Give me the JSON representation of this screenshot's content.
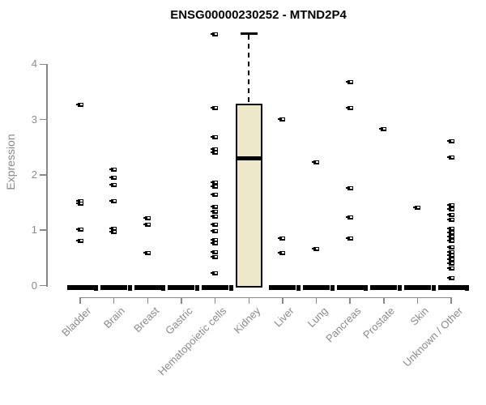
{
  "title": "ENSG00000230252 - MTND2P4",
  "chart_data": {
    "type": "boxplot",
    "title": "ENSG00000230252 - MTND2P4",
    "xlabel": "",
    "ylabel": "Expression",
    "ylim": [
      0,
      4.7
    ],
    "yticks": [
      0,
      1,
      2,
      3,
      4
    ],
    "grid": false,
    "legend": false,
    "categories": [
      "Bladder",
      "Brain",
      "Breast",
      "Gastric",
      "Hematopoietic cells",
      "Kidney",
      "Liver",
      "Lung",
      "Pancreas",
      "Prostate",
      "Skin",
      "Unknown / Other"
    ],
    "series": [
      {
        "name": "Bladder",
        "box": {
          "q1": 0,
          "median": 0,
          "q3": 0,
          "whisker_low": 0,
          "whisker_high": 0
        },
        "points": [
          3.27,
          1.53,
          1.48,
          1.01,
          0.81
        ],
        "zero_point": true
      },
      {
        "name": "Brain",
        "box": {
          "q1": 0,
          "median": 0,
          "q3": 0,
          "whisker_low": 0,
          "whisker_high": 0
        },
        "points": [
          2.1,
          1.95,
          1.81,
          1.53,
          1.03,
          0.97
        ],
        "zero_point": true
      },
      {
        "name": "Breast",
        "box": {
          "q1": 0,
          "median": 0,
          "q3": 0,
          "whisker_low": 0,
          "whisker_high": 0
        },
        "points": [
          1.22,
          1.1,
          0.59
        ],
        "zero_point": true
      },
      {
        "name": "Gastric",
        "box": {
          "q1": 0,
          "median": 0,
          "q3": 0,
          "whisker_low": 0,
          "whisker_high": 0
        },
        "points": [],
        "zero_point": true
      },
      {
        "name": "Hematopoietic cells",
        "box": {
          "q1": 0,
          "median": 0,
          "q3": 0,
          "whisker_low": 0,
          "whisker_high": 0
        },
        "points": [
          4.54,
          3.2,
          2.68,
          2.46,
          2.4,
          1.86,
          1.78,
          1.64,
          1.42,
          1.33,
          1.24,
          1.1,
          0.98,
          0.82,
          0.76,
          0.6,
          0.51,
          0.22
        ],
        "zero_point": true
      },
      {
        "name": "Kidney",
        "box": {
          "q1": 0,
          "median": 2.3,
          "q3": 3.29,
          "whisker_low": 0,
          "whisker_high": 4.55
        },
        "points": [],
        "zero_point": false
      },
      {
        "name": "Liver",
        "box": {
          "q1": 0,
          "median": 0,
          "q3": 0,
          "whisker_low": 0,
          "whisker_high": 0
        },
        "points": [
          3.0,
          0.85,
          0.58
        ],
        "zero_point": true
      },
      {
        "name": "Lung",
        "box": {
          "q1": 0,
          "median": 0,
          "q3": 0,
          "whisker_low": 0,
          "whisker_high": 0
        },
        "points": [
          2.23,
          0.66
        ],
        "zero_point": true
      },
      {
        "name": "Pancreas",
        "box": {
          "q1": 0,
          "median": 0,
          "q3": 0,
          "whisker_low": 0,
          "whisker_high": 0
        },
        "points": [
          3.68,
          3.2,
          1.76,
          1.23,
          0.85
        ],
        "zero_point": true
      },
      {
        "name": "Prostate",
        "box": {
          "q1": 0,
          "median": 0,
          "q3": 0,
          "whisker_low": 0,
          "whisker_high": 0
        },
        "points": [
          2.83
        ],
        "zero_point": true
      },
      {
        "name": "Skin",
        "box": {
          "q1": 0,
          "median": 0,
          "q3": 0,
          "whisker_low": 0,
          "whisker_high": 0
        },
        "points": [
          1.4
        ],
        "zero_point": true
      },
      {
        "name": "Unknown / Other",
        "box": {
          "q1": 0,
          "median": 0,
          "q3": 0,
          "whisker_low": 0,
          "whisker_high": 0
        },
        "points": [
          2.6,
          2.31,
          1.45,
          1.38,
          1.27,
          1.19,
          1.03,
          0.95,
          0.88,
          0.8,
          0.69,
          0.6,
          0.54,
          0.47,
          0.4,
          0.31,
          0.13
        ],
        "zero_point": true
      }
    ],
    "colors": {
      "box_fill": "#ede8ca",
      "box_border": "#000000",
      "median": "#000000",
      "marker": "#000000",
      "axis": "#888888",
      "tick_text": "#8a8a8a",
      "title_text": "#000000",
      "background": "#ffffff"
    }
  }
}
